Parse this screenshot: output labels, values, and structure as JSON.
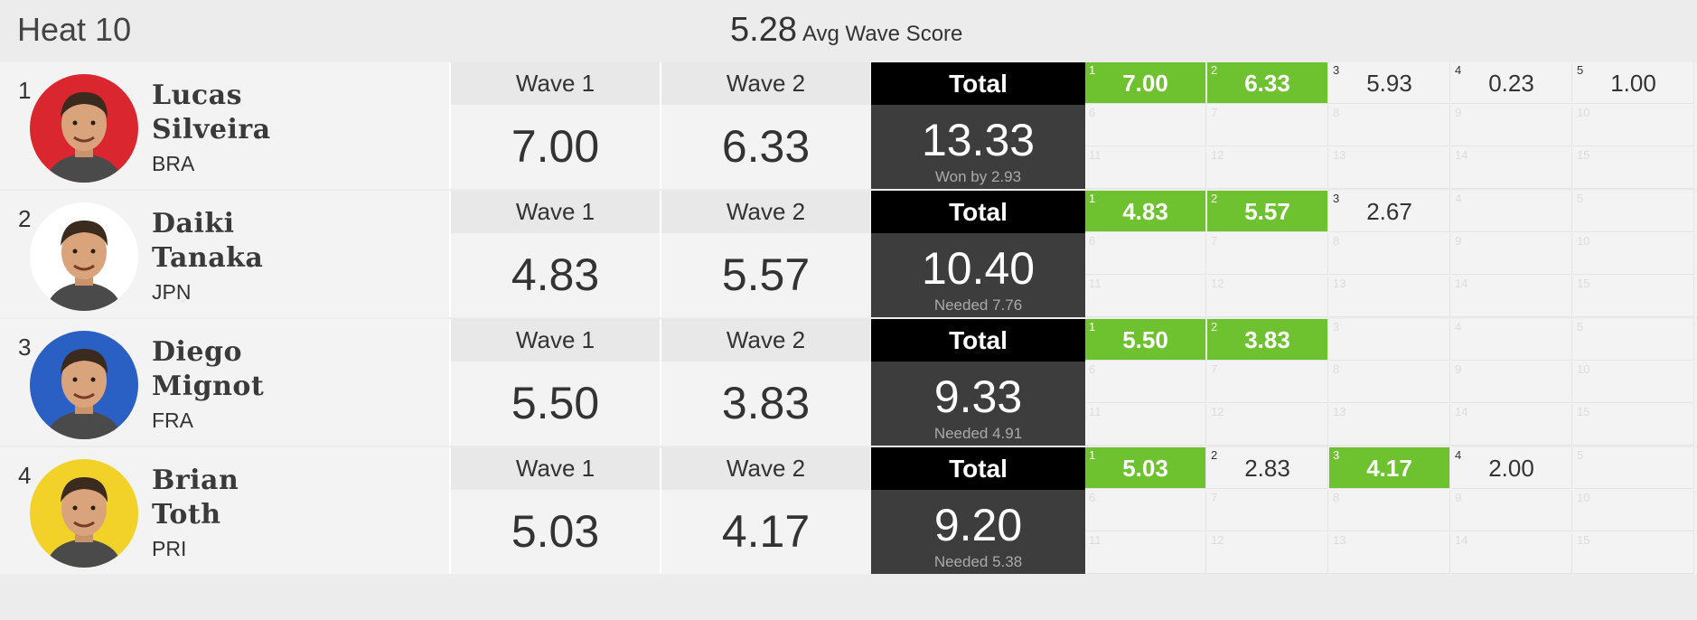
{
  "heat": {
    "title": "Heat 10",
    "avg_value": "5.28",
    "avg_label": "Avg Wave Score"
  },
  "labels": {
    "wave1": "Wave 1",
    "wave2": "Wave 2",
    "total": "Total"
  },
  "colors": {
    "highlight": "#6ec22f",
    "total_bg": "#3d3d3d",
    "total_head": "#000000"
  },
  "surfers": [
    {
      "rank": "1",
      "first": "Lucas",
      "last": "Silveira",
      "country": "BRA",
      "avatar_bg": "#d9262f",
      "wave1": "7.00",
      "wave2": "6.33",
      "total": "13.33",
      "note": "Won by 2.93",
      "waves": [
        {
          "n": "1",
          "score": "7.00",
          "hl": true
        },
        {
          "n": "2",
          "score": "6.33",
          "hl": true
        },
        {
          "n": "3",
          "score": "5.93",
          "hl": false
        },
        {
          "n": "4",
          "score": "0.23",
          "hl": false
        },
        {
          "n": "5",
          "score": "1.00",
          "hl": false
        }
      ]
    },
    {
      "rank": "2",
      "first": "Daiki",
      "last": "Tanaka",
      "country": "JPN",
      "avatar_bg": "#ffffff",
      "wave1": "4.83",
      "wave2": "5.57",
      "total": "10.40",
      "note": "Needed 7.76",
      "waves": [
        {
          "n": "1",
          "score": "4.83",
          "hl": true
        },
        {
          "n": "2",
          "score": "5.57",
          "hl": true
        },
        {
          "n": "3",
          "score": "2.67",
          "hl": false
        }
      ]
    },
    {
      "rank": "3",
      "first": "Diego",
      "last": "Mignot",
      "country": "FRA",
      "avatar_bg": "#2a5fc4",
      "wave1": "5.50",
      "wave2": "3.83",
      "total": "9.33",
      "note": "Needed 4.91",
      "waves": [
        {
          "n": "1",
          "score": "5.50",
          "hl": true
        },
        {
          "n": "2",
          "score": "3.83",
          "hl": true
        }
      ]
    },
    {
      "rank": "4",
      "first": "Brian",
      "last": "Toth",
      "country": "PRI",
      "avatar_bg": "#f2d129",
      "wave1": "5.03",
      "wave2": "4.17",
      "total": "9.20",
      "note": "Needed 5.38",
      "waves": [
        {
          "n": "1",
          "score": "5.03",
          "hl": true
        },
        {
          "n": "2",
          "score": "2.83",
          "hl": false
        },
        {
          "n": "3",
          "score": "4.17",
          "hl": true
        },
        {
          "n": "4",
          "score": "2.00",
          "hl": false
        }
      ]
    }
  ]
}
